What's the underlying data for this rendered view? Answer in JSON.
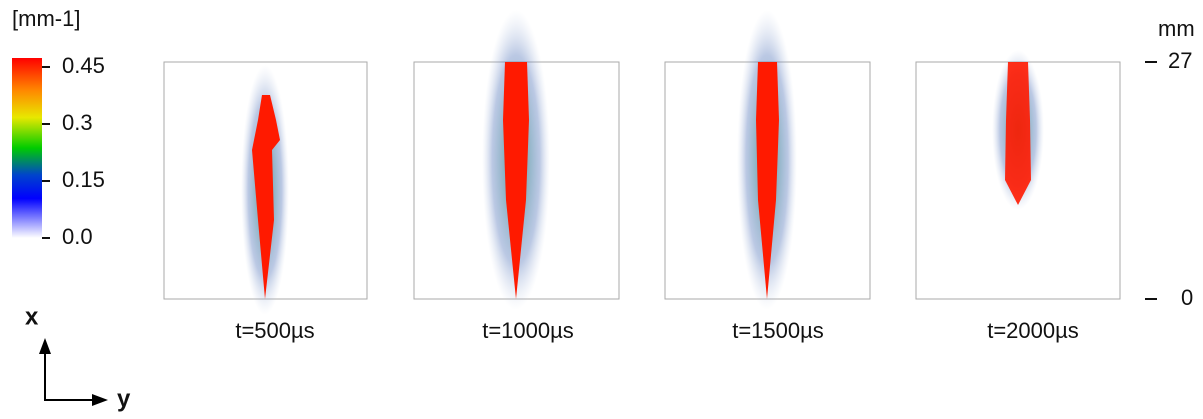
{
  "colorbar": {
    "unit": "[mm-1]",
    "ticks": [
      "0.45",
      "0.3",
      "0.15",
      "0.0"
    ]
  },
  "panels": [
    {
      "label": "t=500µs"
    },
    {
      "label": "t=1000µs"
    },
    {
      "label": "t=1500µs"
    },
    {
      "label": "t=2000µs"
    }
  ],
  "scale": {
    "unit": "mm",
    "ticks": [
      "27",
      "0"
    ]
  },
  "axes": {
    "x": "x",
    "y": "y"
  }
}
